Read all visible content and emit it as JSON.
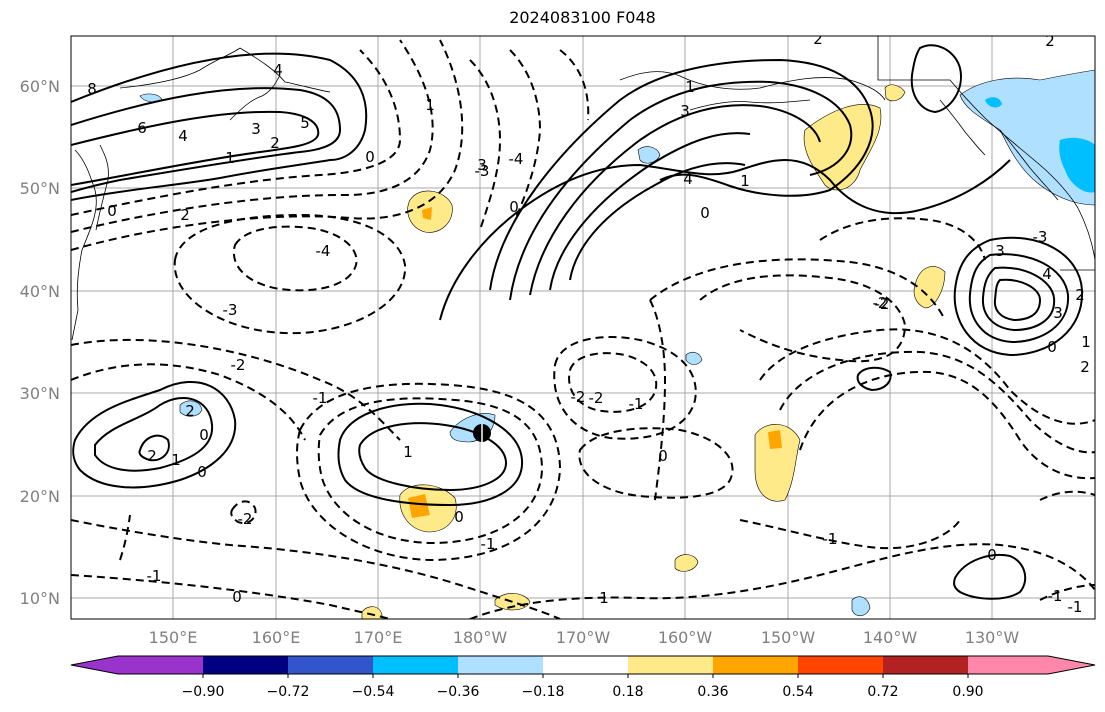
{
  "title": "2024083100 F048",
  "latitude_ticks": [
    "60°N",
    "50°N",
    "40°N",
    "30°N",
    "20°N",
    "10°N"
  ],
  "longitude_ticks": [
    "150°E",
    "160°E",
    "170°E",
    "180°W",
    "170°W",
    "160°W",
    "150°W",
    "140°W",
    "130°W"
  ],
  "colorbar": {
    "tick_labels": [
      "−0.90",
      "−0.72",
      "−0.54",
      "−0.36",
      "−0.18",
      "0.18",
      "0.36",
      "0.54",
      "0.72",
      "0.90"
    ],
    "colors": [
      "#9933cc",
      "#000080",
      "#3355cc",
      "#00bfff",
      "#b0e0ff",
      "#ffffff",
      "#ffea8a",
      "#ffa500",
      "#ff4500",
      "#b22222",
      "#ff88aa"
    ]
  },
  "contour_labels": [
    "8",
    "6",
    "4",
    "3",
    "2",
    "1",
    "0",
    "4",
    "5",
    "2",
    "3",
    "1",
    "0",
    "3",
    "2",
    "1",
    "0",
    "4",
    "3",
    "2",
    "1",
    "0",
    "-1",
    "-2",
    "-3",
    "-4",
    "4",
    "3",
    "2",
    "1",
    "0",
    "-4",
    "-3",
    "-2",
    "-2",
    "-3",
    "2",
    "0",
    "-1",
    "-2",
    "-1",
    "-2",
    "2",
    "1",
    "0",
    "1",
    "0",
    "-2",
    "-1",
    "0",
    "-1",
    "0",
    "-1",
    "1",
    "0",
    "-1",
    "2"
  ],
  "marker": "storm-center"
}
